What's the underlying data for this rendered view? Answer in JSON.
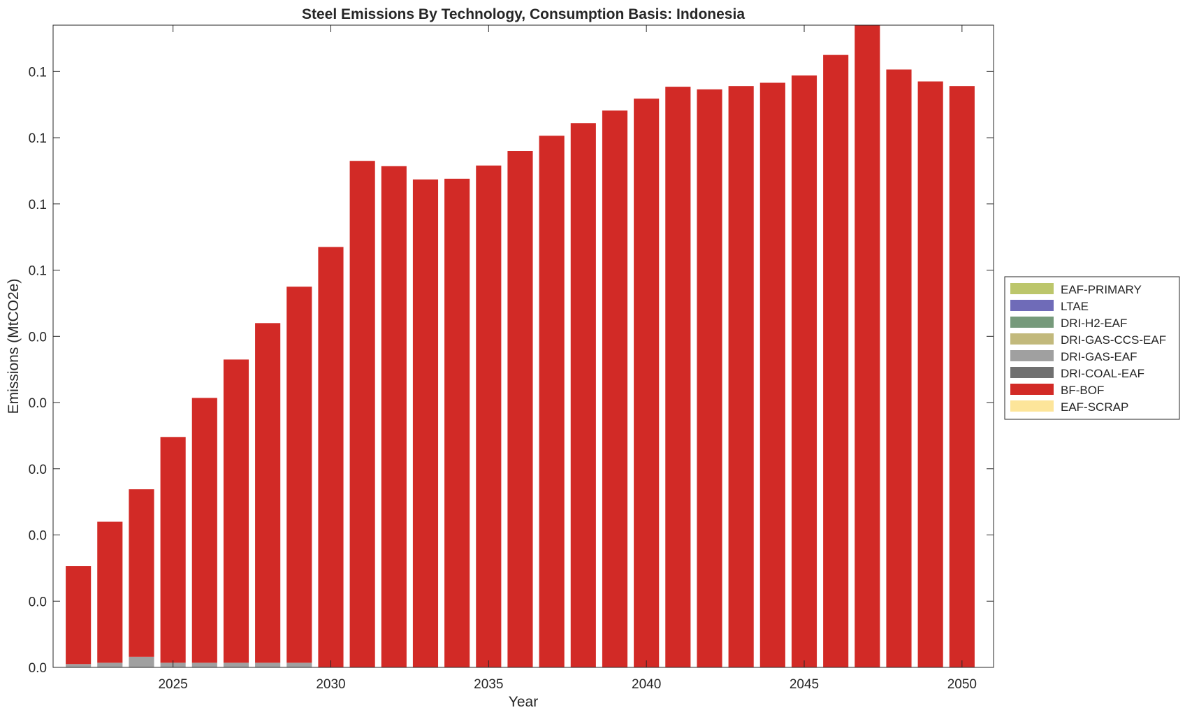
{
  "chart_data": {
    "type": "bar",
    "stacked": true,
    "title": "Steel Emissions By Technology, Consumption Basis: Indonesia",
    "xlabel": "Year",
    "ylabel": "Emissions (MtCO2e)",
    "x": [
      2022,
      2023,
      2024,
      2025,
      2026,
      2027,
      2028,
      2029,
      2030,
      2031,
      2032,
      2033,
      2034,
      2035,
      2036,
      2037,
      2038,
      2039,
      2040,
      2041,
      2042,
      2043,
      2044,
      2045,
      2046,
      2047,
      2048,
      2049,
      2050
    ],
    "xlim": [
      2021.2,
      2051.0
    ],
    "xticks": [
      2025,
      2030,
      2035,
      2040,
      2045,
      2050
    ],
    "xtick_labels": [
      "2025",
      "2030",
      "2035",
      "2040",
      "2045",
      "2050"
    ],
    "ylim": [
      0.0,
      0.097
    ],
    "yticks": [
      0.0,
      0.01,
      0.02,
      0.03,
      0.04,
      0.05,
      0.06,
      0.07,
      0.08,
      0.09
    ],
    "ytick_labels": [
      "0.0",
      "0.0",
      "0.0",
      "0.0",
      "0.0",
      "0.0",
      "0.1",
      "0.1",
      "0.1",
      "0.1"
    ],
    "grid": false,
    "legend_position": "outside-right",
    "series": [
      {
        "name": "EAF-PRIMARY",
        "color": "#bcc66b",
        "values": [
          0,
          0,
          0,
          0,
          0,
          0,
          0,
          0,
          0,
          0,
          0,
          0,
          0,
          0,
          0,
          0,
          0,
          0,
          0,
          0,
          0,
          0,
          0,
          0,
          0,
          0,
          0,
          0,
          0
        ]
      },
      {
        "name": "LTAE",
        "color": "#6f6bb8",
        "values": [
          0,
          0,
          0,
          0,
          0,
          0,
          0,
          0,
          0,
          0,
          0,
          0,
          0,
          0,
          0,
          0,
          0,
          0,
          0,
          0,
          0,
          0,
          0,
          0,
          0,
          0,
          0,
          0,
          0
        ]
      },
      {
        "name": "DRI-H2-EAF",
        "color": "#769a7b",
        "values": [
          0,
          0,
          0,
          0,
          0,
          0,
          0,
          0,
          0,
          0,
          0,
          0,
          0,
          0,
          0,
          0,
          0,
          0,
          0,
          0,
          0,
          0,
          0,
          0,
          0,
          0,
          0,
          0,
          0
        ]
      },
      {
        "name": "DRI-GAS-CCS-EAF",
        "color": "#c2b97c",
        "values": [
          0,
          0,
          0,
          0,
          0,
          0,
          0,
          0,
          0,
          0,
          0,
          0,
          0,
          0,
          0,
          0,
          0,
          0,
          0,
          0,
          0,
          0,
          0,
          0,
          0,
          0,
          0,
          0,
          0
        ]
      },
      {
        "name": "DRI-GAS-EAF",
        "color": "#a0a0a0",
        "values": [
          0.0005,
          0.0007,
          0.0016,
          0.0007,
          0.0007,
          0.0007,
          0.0007,
          0.0007,
          0,
          0,
          0,
          0,
          0,
          0,
          0,
          0,
          0,
          0,
          0,
          0,
          0,
          0,
          0,
          0,
          0,
          0,
          0,
          0,
          0
        ]
      },
      {
        "name": "DRI-COAL-EAF",
        "color": "#707070",
        "values": [
          0,
          0,
          0,
          0,
          0,
          0,
          0,
          0,
          0,
          0,
          0,
          0,
          0,
          0,
          0,
          0,
          0,
          0,
          0,
          0,
          0,
          0,
          0,
          0,
          0,
          0,
          0,
          0,
          0
        ]
      },
      {
        "name": "BF-BOF",
        "color": "#d22a26",
        "values": [
          0.0148,
          0.0213,
          0.0253,
          0.0341,
          0.04,
          0.0458,
          0.0513,
          0.0568,
          0.0635,
          0.0765,
          0.0757,
          0.0737,
          0.0738,
          0.0758,
          0.078,
          0.0803,
          0.0822,
          0.0841,
          0.0859,
          0.0877,
          0.0873,
          0.0878,
          0.0883,
          0.0894,
          0.0925,
          0.097,
          0.0903,
          0.0885,
          0.0878
        ]
      },
      {
        "name": "EAF-SCRAP",
        "color": "#fde59a",
        "values": [
          0,
          0,
          0,
          0,
          0,
          0,
          0,
          0,
          0,
          0,
          0,
          0,
          0,
          0,
          0,
          0,
          0,
          0,
          0,
          0,
          0,
          0,
          0,
          0,
          0,
          0,
          0,
          0,
          0
        ]
      }
    ]
  }
}
